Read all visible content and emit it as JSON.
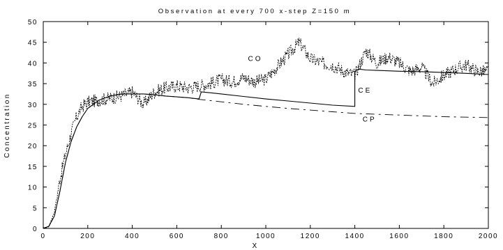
{
  "chart_data": {
    "type": "line",
    "title": "Observation at every 700 x-step Z=150 m",
    "xlabel": "X",
    "ylabel": "Concentration",
    "xlim": [
      0,
      2000
    ],
    "ylim": [
      0,
      50
    ],
    "xticks": [
      0,
      200,
      400,
      600,
      800,
      1000,
      1200,
      1400,
      1600,
      1800,
      2000
    ],
    "yticks": [
      0,
      5,
      10,
      15,
      20,
      25,
      30,
      35,
      40,
      45,
      50
    ],
    "grid": false,
    "legend": "none",
    "annotations": [
      {
        "text": "CO",
        "x": 920,
        "y": 40.5
      },
      {
        "text": "CE",
        "x": 1415,
        "y": 32.8
      },
      {
        "text": "CP",
        "x": 1435,
        "y": 25.8
      }
    ],
    "series": [
      {
        "name": "CO",
        "style": "dashed-jagged",
        "x": [
          0,
          25,
          50,
          75,
          100,
          125,
          150,
          175,
          200,
          250,
          300,
          350,
          400,
          450,
          500,
          550,
          600,
          650,
          700,
          750,
          800,
          850,
          900,
          950,
          1000,
          1050,
          1100,
          1150,
          1200,
          1250,
          1300,
          1350,
          1400,
          1425,
          1450,
          1500,
          1550,
          1600,
          1650,
          1700,
          1750,
          1800,
          1850,
          1900,
          1950,
          2000
        ],
        "y": [
          0,
          0.5,
          4,
          12,
          18,
          23,
          27,
          29.5,
          30.5,
          31,
          31.5,
          32,
          33,
          30,
          33,
          34,
          34.5,
          34,
          34.5,
          35,
          36,
          35.5,
          36.5,
          35.5,
          36,
          39,
          42,
          45,
          41,
          40,
          39.5,
          38,
          37,
          40,
          43,
          40,
          41.5,
          40,
          38,
          39,
          35,
          37,
          38.5,
          39.5,
          38,
          38
        ]
      },
      {
        "name": "CE",
        "style": "solid",
        "x": [
          0,
          25,
          50,
          75,
          100,
          125,
          150,
          175,
          200,
          250,
          300,
          350,
          400,
          450,
          500,
          550,
          600,
          650,
          700,
          710,
          750,
          800,
          900,
          1000,
          1100,
          1200,
          1300,
          1400,
          1400,
          1420,
          1450,
          1500,
          1600,
          1700,
          1800,
          1900,
          2000
        ],
        "y": [
          0,
          0.5,
          3,
          9,
          16,
          21,
          24.5,
          27,
          29,
          31,
          32,
          32.5,
          32.5,
          32.5,
          32.3,
          32,
          31.8,
          31.6,
          31.3,
          33,
          32.8,
          32.5,
          31.9,
          31.3,
          30.8,
          30.3,
          29.8,
          29.5,
          38,
          38.5,
          38.3,
          38.2,
          38,
          37.9,
          37.7,
          37.5,
          37.2
        ]
      },
      {
        "name": "CP",
        "style": "dash-dot",
        "x": [
          0,
          25,
          50,
          75,
          100,
          125,
          150,
          175,
          200,
          250,
          300,
          350,
          400,
          450,
          500,
          550,
          600,
          650,
          700,
          800,
          900,
          1000,
          1100,
          1200,
          1300,
          1400,
          1500,
          1600,
          1700,
          1800,
          1900,
          2000
        ],
        "y": [
          0,
          0.5,
          3,
          9,
          16,
          21,
          24.5,
          27,
          29,
          31,
          32,
          32.5,
          32.5,
          32.5,
          32.3,
          32,
          31.8,
          31.6,
          31.2,
          30.6,
          30,
          29.5,
          29,
          28.6,
          28.2,
          27.8,
          27.6,
          27.4,
          27.2,
          27,
          26.9,
          26.8
        ]
      }
    ]
  }
}
